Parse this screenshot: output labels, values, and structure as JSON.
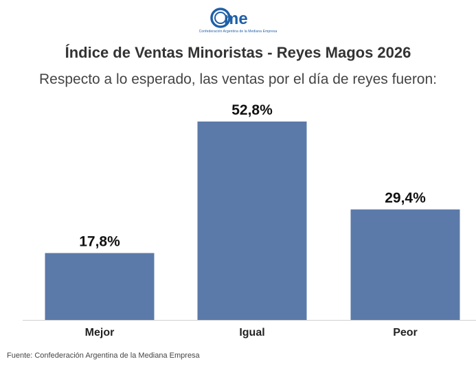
{
  "header": {
    "logo_text": "came",
    "logo_tagline": "Confederación Argentina de la Mediana Empresa"
  },
  "chart_data": {
    "type": "bar",
    "title": "Índice de Ventas Minoristas - Reyes Magos 2026",
    "subtitle": "Respecto a lo esperado, las ventas por el día de reyes fueron:",
    "categories": [
      "Mejor",
      "Igual",
      "Peor"
    ],
    "values": [
      17.8,
      52.8,
      29.4
    ],
    "labels": [
      "17,8%",
      "52,8%",
      "29,4%"
    ],
    "xlabel": "",
    "ylabel": "",
    "ylim": [
      0,
      52.8
    ],
    "bar_color": "#5b7aa9",
    "grid": false,
    "legend": "none"
  },
  "footer": {
    "source": "Fuente: Confederación Argentina de la Mediana Empresa"
  }
}
